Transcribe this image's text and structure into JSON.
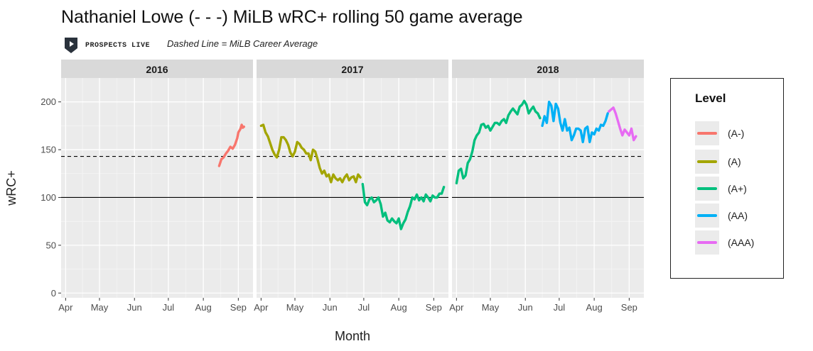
{
  "chart_data": {
    "type": "line",
    "title": "Nathaniel Lowe (- - -) MiLB wRC+ rolling 50 game average",
    "subtitle": "Dashed Line = MiLB Career Average",
    "brand": "PROSPECTS LIVE",
    "xlabel": "Month",
    "ylabel": "wRC+",
    "ylim": [
      -5,
      225
    ],
    "y_ticks": [
      0,
      50,
      100,
      150,
      200
    ],
    "x_ticks": [
      "Apr",
      "May",
      "Jun",
      "Jul",
      "Aug",
      "Sep"
    ],
    "facets": [
      "2016",
      "2017",
      "2018"
    ],
    "reference_lines": [
      {
        "y": 100,
        "style": "solid"
      },
      {
        "y": 143,
        "style": "dashed"
      }
    ],
    "legend": {
      "title": "Level",
      "placement": "right",
      "entries": [
        {
          "label": "(A-)",
          "color": "#F8766D"
        },
        {
          "label": "(A)",
          "color": "#A3A500"
        },
        {
          "label": "(A+)",
          "color": "#00BF7D"
        },
        {
          "label": "(AA)",
          "color": "#00B0F6"
        },
        {
          "label": "(AAA)",
          "color": "#E76BF3"
        }
      ]
    },
    "x_unit": "day of year (Apr 1 = 91)",
    "series": [
      {
        "name": "(A-)",
        "facet": "2016",
        "color": "#F8766D",
        "x": [
          227,
          229,
          231,
          233,
          235,
          237,
          239,
          241,
          243,
          244,
          246,
          247,
          248,
          249
        ],
        "y": [
          133,
          140,
          142,
          146,
          149,
          153,
          151,
          155,
          162,
          168,
          172,
          176,
          173,
          174
        ]
      },
      {
        "name": "(A)",
        "facet": "2017",
        "color": "#A3A500",
        "x": [
          91,
          93,
          95,
          97,
          99,
          101,
          103,
          105,
          107,
          109,
          111,
          113,
          115,
          117,
          119,
          121,
          123,
          125,
          127,
          129,
          131,
          133,
          135,
          137,
          139,
          141,
          143,
          145,
          147,
          149,
          151,
          153,
          155,
          157,
          159,
          161,
          163,
          165,
          167,
          169,
          171,
          173,
          175,
          177,
          179
        ],
        "y": [
          175,
          176,
          168,
          164,
          157,
          150,
          145,
          142,
          150,
          163,
          163,
          160,
          155,
          147,
          143,
          148,
          158,
          156,
          152,
          150,
          146,
          146,
          139,
          150,
          148,
          140,
          131,
          125,
          128,
          122,
          124,
          116,
          124,
          120,
          118,
          120,
          116,
          121,
          124,
          118,
          121,
          122,
          116,
          124,
          121
        ]
      },
      {
        "name": "(A+)",
        "facet": "2017",
        "color": "#00BF7D",
        "x": [
          181,
          183,
          185,
          187,
          189,
          191,
          193,
          195,
          197,
          199,
          201,
          203,
          205,
          207,
          209,
          211,
          213,
          215,
          217,
          219,
          221,
          223,
          225,
          227,
          229,
          231,
          233,
          235,
          237,
          239,
          241,
          243,
          245,
          247,
          249,
          251,
          253
        ],
        "y": [
          114,
          95,
          92,
          98,
          100,
          95,
          97,
          100,
          93,
          80,
          84,
          76,
          74,
          78,
          75,
          73,
          78,
          67,
          73,
          77,
          85,
          91,
          100,
          98,
          103,
          97,
          100,
          96,
          103,
          100,
          96,
          102,
          100,
          100,
          104,
          104,
          111
        ]
      },
      {
        "name": "(A+)",
        "facet": "2018",
        "color": "#00BF7D",
        "x": [
          91,
          93,
          95,
          97,
          99,
          101,
          103,
          105,
          107,
          109,
          111,
          113,
          115,
          117,
          119,
          121,
          123,
          125,
          127,
          129,
          131,
          133,
          135,
          137,
          139,
          141,
          143,
          145,
          147,
          149,
          151,
          153,
          155,
          157,
          159,
          161,
          163,
          165
        ],
        "y": [
          115,
          128,
          130,
          120,
          123,
          136,
          140,
          148,
          160,
          165,
          168,
          176,
          177,
          173,
          175,
          170,
          174,
          178,
          178,
          176,
          180,
          182,
          178,
          186,
          190,
          193,
          190,
          187,
          195,
          197,
          201,
          197,
          188,
          192,
          195,
          190,
          188,
          183
        ]
      },
      {
        "name": "(AA)",
        "facet": "2018",
        "color": "#00B0F6",
        "x": [
          167,
          169,
          171,
          173,
          175,
          177,
          179,
          181,
          183,
          185,
          187,
          189,
          191,
          193,
          195,
          197,
          199,
          201,
          203,
          205,
          207,
          209,
          211,
          213,
          215,
          217,
          219,
          221,
          223,
          225
        ],
        "y": [
          175,
          185,
          178,
          200,
          196,
          180,
          198,
          193,
          178,
          170,
          182,
          170,
          173,
          160,
          165,
          172,
          172,
          170,
          158,
          172,
          174,
          158,
          168,
          166,
          172,
          170,
          176,
          175,
          180,
          188
        ]
      },
      {
        "name": "(AAA)",
        "facet": "2018",
        "color": "#E76BF3",
        "x": [
          226,
          228,
          230,
          232,
          234,
          236,
          238,
          240,
          242,
          244,
          246,
          248,
          250
        ],
        "y": [
          190,
          192,
          194,
          188,
          180,
          172,
          165,
          171,
          168,
          165,
          172,
          160,
          164
        ]
      }
    ]
  }
}
